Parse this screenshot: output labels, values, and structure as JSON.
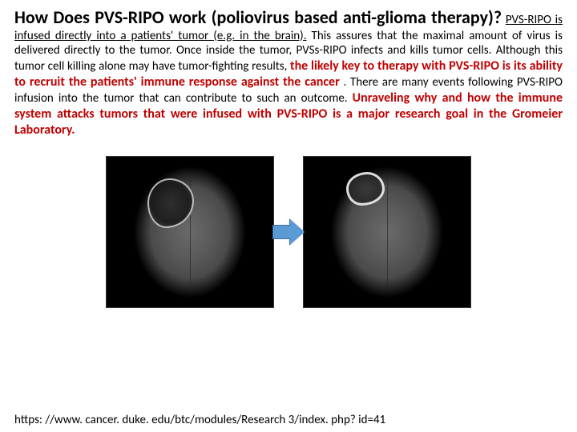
{
  "paragraph": {
    "title": "How Does PVS-RIPO work (poliovirus based anti-glioma therapy)?",
    "sentence_underlined": "PVS-RIPO is infused directly into a patients' tumor (e.g. in the brain).",
    "body1": " This assures that the maximal amount of virus is delivered directly to the tumor. Once inside the tumor, PVSs-RIPO infects and kills tumor cells. Although this tumor cell killing alone may have tumor-fighting results, ",
    "highlight1": "the likely key to therapy with PVS-RIPO is its ability to recruit the patients' immune response against the cancer",
    "body2": ". There are many events following PVS-RIPO infusion into the tumor that can contribute to such an outcome. ",
    "highlight2": "Unraveling why and how the immune system attacks tumors that were infused with PVS-RIPO is a major research goal in the Gromeier Laboratory."
  },
  "images": {
    "left_alt": "brain-scan-before",
    "right_alt": "brain-scan-after",
    "arrow_color": "#5b9bd5",
    "arrow_border": "#41719c",
    "background": "#000000"
  },
  "url": "https: //www. cancer. duke. edu/btc/modules/Research 3/index. php? id=41"
}
